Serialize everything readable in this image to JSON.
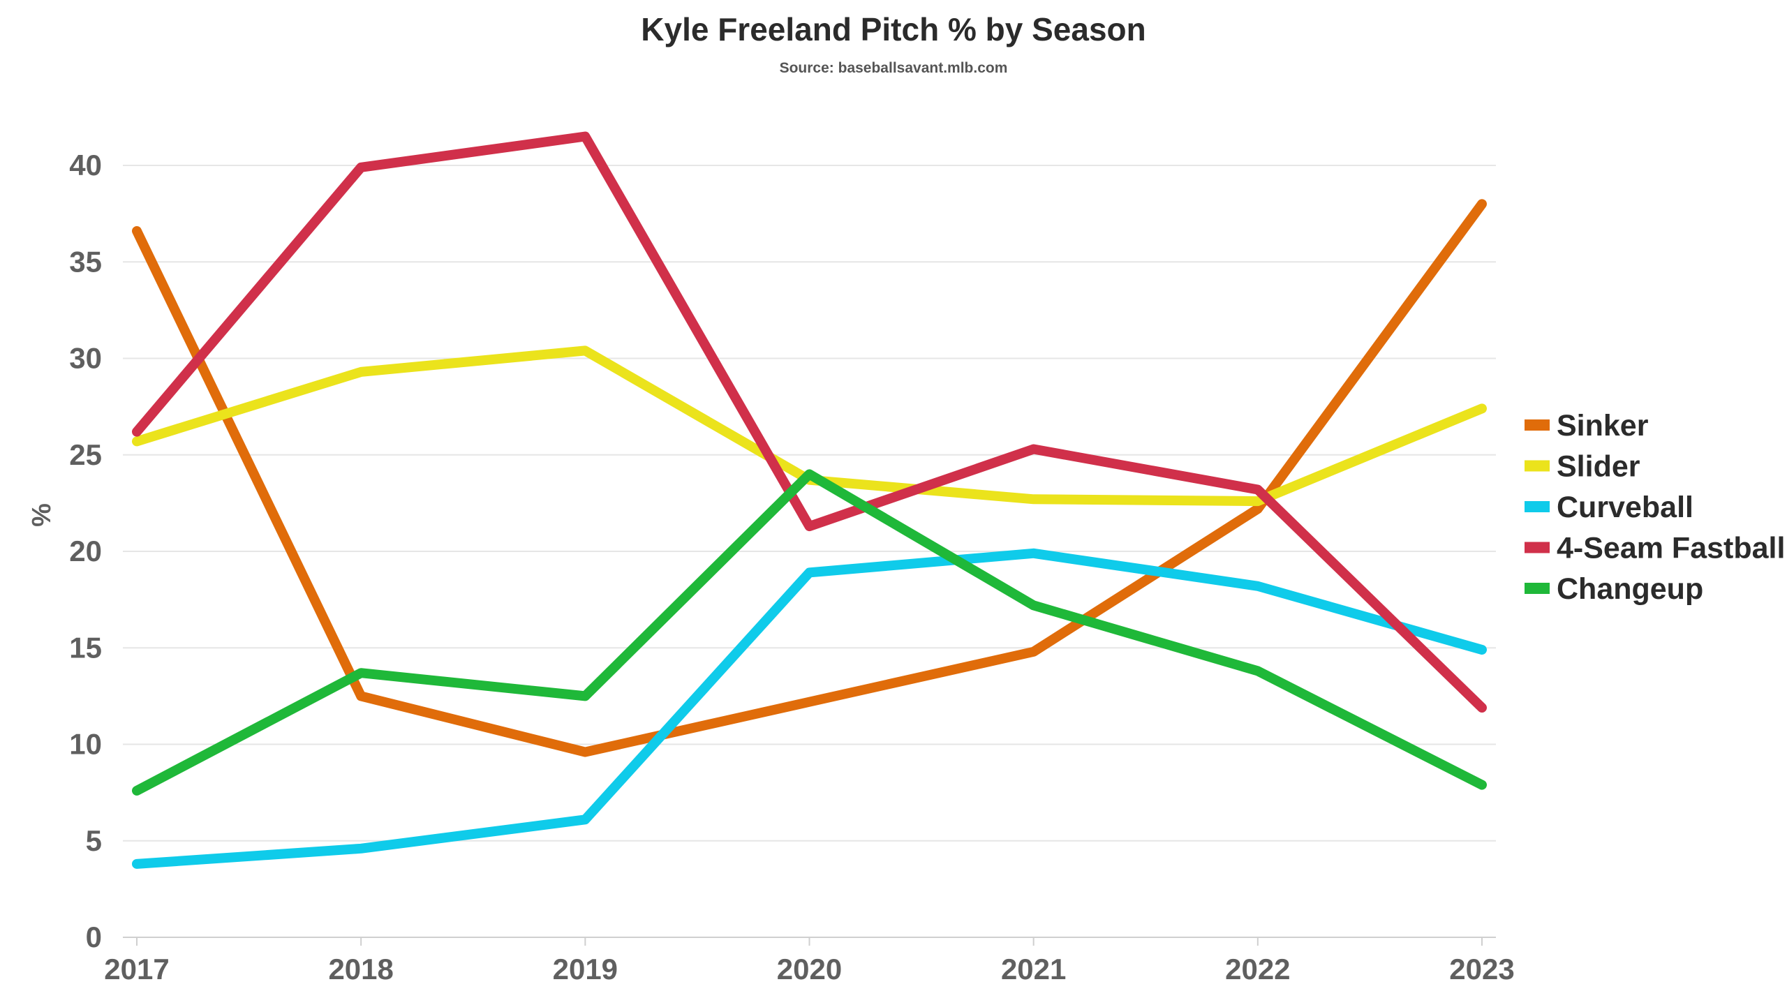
{
  "chart_data": {
    "type": "line",
    "title": "Kyle Freeland Pitch % by Season",
    "subtitle": "Source: baseballsavant.mlb.com",
    "xlabel": "",
    "ylabel": "%",
    "x": [
      "2017",
      "2018",
      "2019",
      "2020",
      "2021",
      "2022",
      "2023"
    ],
    "ylim": [
      0,
      42
    ],
    "yticks": [
      0,
      5,
      10,
      15,
      20,
      25,
      30,
      35,
      40
    ],
    "grid": true,
    "legend_position": "right",
    "series": [
      {
        "name": "Sinker",
        "color": "#e06c0a",
        "values": [
          36.6,
          12.5,
          9.6,
          12.2,
          14.8,
          22.2,
          38.0
        ]
      },
      {
        "name": "Slider",
        "color": "#ebe31c",
        "values": [
          25.7,
          29.3,
          30.4,
          23.7,
          22.7,
          22.6,
          27.4
        ]
      },
      {
        "name": "Curveball",
        "color": "#0fcbea",
        "values": [
          3.8,
          4.6,
          6.1,
          18.9,
          19.9,
          18.2,
          14.9
        ]
      },
      {
        "name": "4-Seam Fastball",
        "color": "#d0304a",
        "values": [
          26.2,
          39.9,
          41.5,
          21.3,
          25.3,
          23.2,
          11.9
        ]
      },
      {
        "name": "Changeup",
        "color": "#1fb839",
        "values": [
          7.6,
          13.7,
          12.5,
          24.0,
          17.2,
          13.8,
          7.9
        ]
      }
    ]
  }
}
